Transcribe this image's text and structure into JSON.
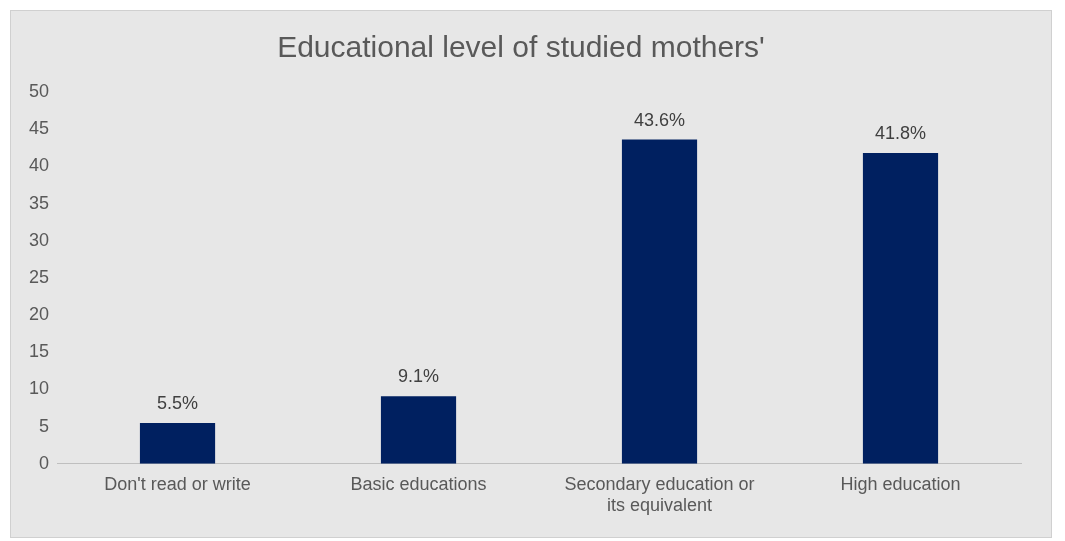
{
  "chart_data": {
    "type": "bar",
    "title": "Educational level of studied mothers'",
    "categories": [
      "Don't read or write",
      "Basic educations",
      "Secondary education or its equivalent",
      "High education"
    ],
    "values": [
      5.5,
      9.1,
      43.6,
      41.8
    ],
    "value_labels": [
      "5.5%",
      "9.1%",
      "43.6%",
      "41.8%"
    ],
    "color": "#002060",
    "ylim": [
      0,
      50
    ],
    "yticks": [
      0,
      5,
      10,
      15,
      20,
      25,
      30,
      35,
      40,
      45,
      50
    ],
    "grid": false,
    "legend": false
  }
}
